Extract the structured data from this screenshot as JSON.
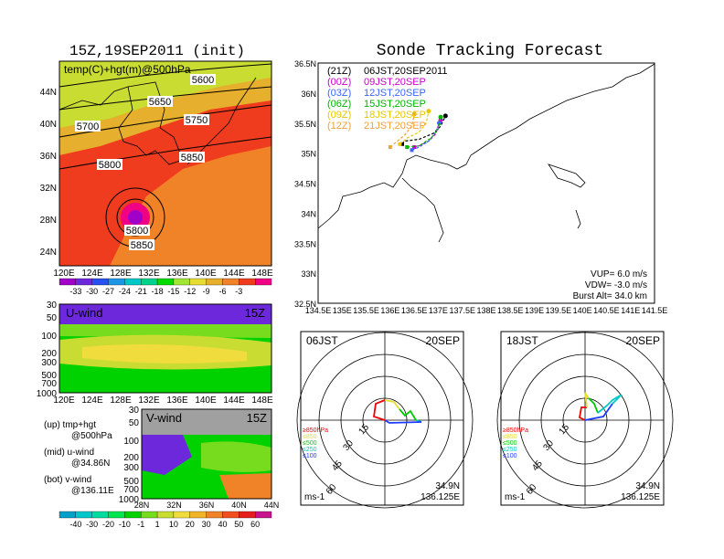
{
  "colors": {
    "temp": [
      "#a000c8",
      "#6e28dc",
      "#2850f0",
      "#1e96e6",
      "#00c8c8",
      "#00d28c",
      "#00dc00",
      "#a0e632",
      "#e6dc32",
      "#e6af2d",
      "#f08228",
      "#f03c1e",
      "#f00082"
    ],
    "wind": [
      "#00a0c8",
      "#00c8c8",
      "#00dca0",
      "#00e650",
      "#00d200",
      "#78dc1e",
      "#c8dc32",
      "#f0dc3c",
      "#f0b428",
      "#f08228",
      "#f0501e",
      "#e61e1e"
    ],
    "tracks": [
      "#000000",
      "#c800c8",
      "#3c64ff",
      "#00b400",
      "#e6c800",
      "#f0a03c"
    ],
    "hodo_levels": [
      "#f00000",
      "#e6dc32",
      "#00c800",
      "#00c8c8",
      "#1e3cff"
    ]
  },
  "left": {
    "map_title": "15Z,19SEP2011 (init)",
    "map_label": "temp(C)+hgt(m)@500hPa",
    "lat_labels": [
      "44N",
      "40N",
      "36N",
      "32N",
      "28N",
      "24N"
    ],
    "lon_labels": [
      "120E",
      "124E",
      "128E",
      "132E",
      "136E",
      "140E",
      "144E",
      "148E"
    ],
    "contour_labels": [
      "5600",
      "5650",
      "5700",
      "5750",
      "5800",
      "5850",
      "5800",
      "5850"
    ],
    "temp_scale": [
      "-33",
      "-30",
      "-27",
      "-24",
      "-21",
      "-18",
      "-15",
      "-12",
      "-9",
      "-6",
      "-3"
    ],
    "uwind_title": "U-wind",
    "uwind_time": "15Z",
    "uwind_y": [
      "30",
      "50",
      "100",
      "200",
      "300",
      "500",
      "700",
      "1000"
    ],
    "uwind_x": [
      "120E",
      "124E",
      "128E",
      "132E",
      "136E",
      "140E",
      "144E",
      "148E"
    ],
    "vwind_title": "V-wind",
    "vwind_time": "15Z",
    "vwind_y": [
      "30",
      "50",
      "100",
      "200",
      "300",
      "500",
      "700",
      "1000"
    ],
    "vwind_x": [
      "28N",
      "32N",
      "36N",
      "40N",
      "44N"
    ],
    "wind_scale": [
      "-40",
      "-30",
      "-20",
      "-10",
      "-1",
      "1",
      "10",
      "20",
      "30",
      "40",
      "50",
      "60"
    ],
    "notes": [
      {
        "a": "(up) tmp+hgt",
        "b": "@500hPa"
      },
      {
        "a": "(mid) u-wind",
        "b": "@34.86N"
      },
      {
        "a": "(bot) v-wind",
        "b": "@136.11E"
      }
    ]
  },
  "right": {
    "title": "Sonde Tracking Forecast",
    "legend": [
      {
        "code": "(21Z)",
        "time": "06JST,20SEP2011"
      },
      {
        "code": "(00Z)",
        "time": "09JST,20SEP"
      },
      {
        "code": "(03Z)",
        "time": "12JST,20SEP"
      },
      {
        "code": "(06Z)",
        "time": "15JST,20SEP"
      },
      {
        "code": "(09Z)",
        "time": "18JST,20SEP"
      },
      {
        "code": "(12Z)",
        "time": "21JST,20SEP"
      }
    ],
    "lat_labels": [
      "36.5N",
      "36N",
      "35.5N",
      "35N",
      "34.5N",
      "34N",
      "33.5N",
      "33N",
      "32.5N"
    ],
    "lon_labels": [
      "134.5E",
      "135E",
      "135.5E",
      "136E",
      "136.5E",
      "137E",
      "137.5E",
      "138E",
      "138.5E",
      "139E",
      "139.5E",
      "140E",
      "140.5E",
      "141E",
      "141.5E"
    ],
    "params": [
      "VUP=  6.0 m/s",
      "VDW= -3.0 m/s",
      "Burst Alt= 34.0 km"
    ]
  },
  "chart_data": [
    {
      "type": "line",
      "title": "Sonde Tracking Forecast",
      "xlim": [
        134.5,
        141.5
      ],
      "ylim": [
        32.5,
        36.5
      ],
      "series": [
        {
          "name": "(21Z) 06JST,20SEP2011",
          "x": [
            136.25,
            136.3,
            136.6,
            136.9,
            137.05,
            137.15
          ],
          "y": [
            35.15,
            35.2,
            35.23,
            35.33,
            35.45,
            35.62
          ]
        },
        {
          "name": "(00Z) 09JST,20SEP",
          "x": [
            136.5,
            136.6,
            136.8,
            136.95,
            137.0,
            137.05
          ],
          "y": [
            35.1,
            35.12,
            35.2,
            35.32,
            35.45,
            35.55
          ]
        },
        {
          "name": "(03Z) 12JST,20SEP",
          "x": [
            136.45,
            136.6,
            136.8,
            136.95,
            137.02
          ],
          "y": [
            35.05,
            35.1,
            35.2,
            35.35,
            35.5
          ]
        },
        {
          "name": "(06Z) 15JST,20SEP",
          "x": [
            136.35,
            136.6,
            136.85,
            137.0,
            137.05
          ],
          "y": [
            35.1,
            35.12,
            35.25,
            35.4,
            35.6
          ]
        },
        {
          "name": "(09Z) 18JST,20SEP",
          "x": [
            136.2,
            136.35,
            136.6,
            136.75,
            136.8
          ],
          "y": [
            35.15,
            35.25,
            35.35,
            35.5,
            35.7
          ]
        },
        {
          "name": "(12Z) 21JST,20SEP",
          "x": [
            136.0,
            136.15,
            136.3,
            136.45,
            136.5
          ],
          "y": [
            35.1,
            35.2,
            35.3,
            35.45,
            35.65
          ]
        }
      ]
    },
    {
      "type": "scatter",
      "title": "06JST 20SEP",
      "rings": [
        "15",
        "30",
        "45",
        "60"
      ],
      "levels": [
        "≥850hPa",
        "≤850",
        "≤500",
        "≤250",
        "≤100"
      ],
      "location": [
        "34.9N",
        "136.125E"
      ],
      "units": "ms-1"
    },
    {
      "type": "scatter",
      "title": "18JST 20SEP",
      "rings": [
        "15",
        "30",
        "45",
        "60"
      ],
      "levels": [
        "≥850hPa",
        "≤850",
        "≤500",
        "≤250",
        "≤100"
      ],
      "location": [
        "34.9N",
        "136.125E"
      ],
      "units": "ms-1"
    }
  ],
  "hodo1": {
    "left": "06JST",
    "right": "20SEP",
    "units": "ms-1",
    "lat": "34.9N",
    "lon": "136.125E"
  },
  "hodo2": {
    "left": "18JST",
    "right": "20SEP",
    "units": "ms-1",
    "lat": "34.9N",
    "lon": "136.125E"
  }
}
